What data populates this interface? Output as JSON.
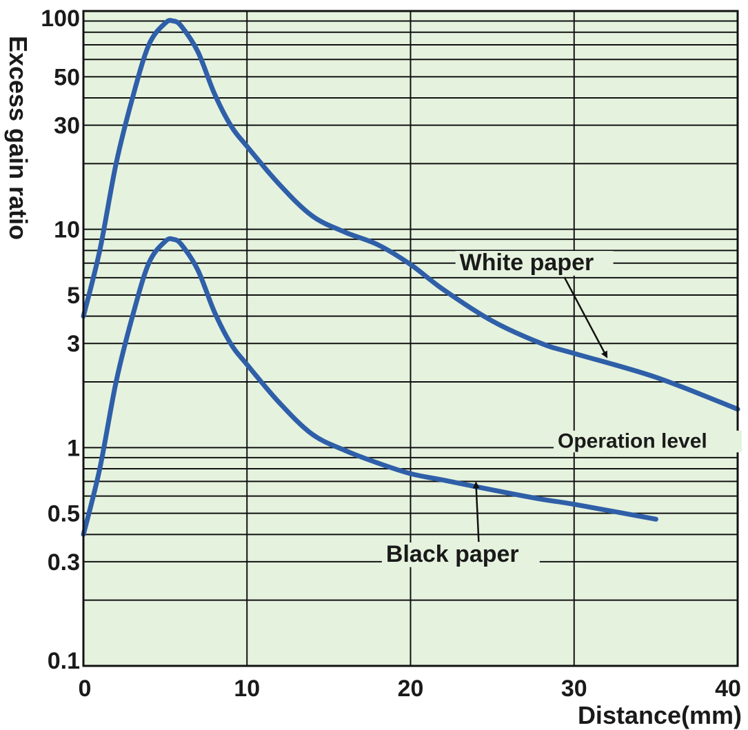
{
  "chart_data": {
    "type": "line",
    "xlabel": "Distance(mm)",
    "ylabel": "Excess gain ratio",
    "xlim": [
      0,
      40
    ],
    "ylim": [
      0.1,
      100
    ],
    "y_scale": "log",
    "grid": true,
    "x_ticks": [
      "0",
      "10",
      "20",
      "30",
      "40"
    ],
    "y_ticks": [
      "0.1",
      "0.3",
      "0.5",
      "1",
      "3",
      "5",
      "10",
      "30",
      "50",
      "100"
    ],
    "colors": {
      "background": "#e5f2de",
      "line": "#2f5fa8",
      "grid": "#111111"
    },
    "series": [
      {
        "name": "White paper",
        "x": [
          0,
          1,
          2,
          3,
          4,
          5,
          5.5,
          6,
          7,
          8,
          9,
          10,
          12,
          14,
          16,
          18,
          20,
          22,
          25,
          28,
          30,
          35,
          40
        ],
        "y": [
          4,
          8,
          20,
          40,
          70,
          88,
          90,
          85,
          65,
          42,
          30,
          24,
          16,
          11.5,
          9.7,
          8.5,
          6.9,
          5.3,
          3.8,
          3.0,
          2.7,
          2.1,
          1.5
        ]
      },
      {
        "name": "Black paper",
        "x": [
          0,
          1,
          2,
          3,
          4,
          5,
          5.5,
          6,
          7,
          8,
          9,
          10,
          12,
          14,
          16,
          18,
          20,
          22,
          25,
          28,
          30,
          35
        ],
        "y": [
          0.4,
          0.8,
          2.0,
          4.0,
          7.0,
          8.8,
          9.0,
          8.5,
          6.5,
          4.2,
          3.0,
          2.4,
          1.6,
          1.15,
          0.97,
          0.85,
          0.76,
          0.71,
          0.64,
          0.58,
          0.55,
          0.47
        ]
      }
    ],
    "annotations": [
      {
        "text": "White paper",
        "x": 23,
        "y": 6.5,
        "arrow_to_x": 32,
        "arrow_to_y": 2.6
      },
      {
        "text": "Operation level",
        "x": 29,
        "y": 1
      },
      {
        "text": "Black paper",
        "x": 18.5,
        "y": 0.3,
        "arrow_to_x": 24,
        "arrow_to_y": 0.69
      }
    ]
  }
}
